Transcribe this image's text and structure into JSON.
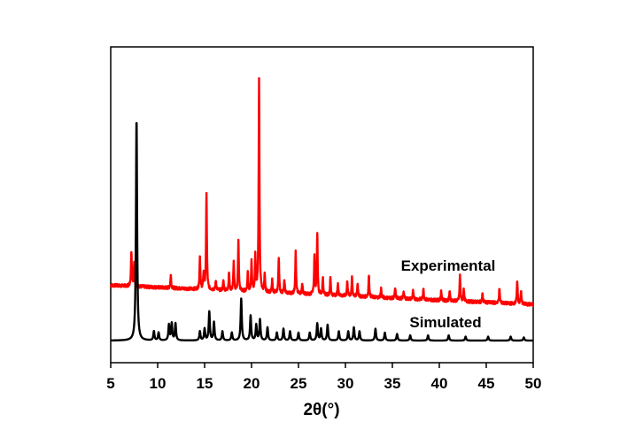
{
  "chart_data": {
    "type": "line",
    "xlabel": "2θ(°)",
    "xlim": [
      5,
      50
    ],
    "xticks": [
      "5",
      "10",
      "15",
      "20",
      "25",
      "30",
      "35",
      "40",
      "45",
      "50"
    ],
    "ylabel": "",
    "yticks_shown": false,
    "legend": "inline labels",
    "series": [
      {
        "name": "Experimental",
        "color": "#ff0000",
        "baseline": {
          "x": [
            5,
            50
          ],
          "y": [
            0.212,
            0.138
          ]
        },
        "peaks": [
          {
            "x": 7.2,
            "y": 0.34
          },
          {
            "x": 7.5,
            "y": 0.3
          },
          {
            "x": 11.4,
            "y": 0.25
          },
          {
            "x": 14.5,
            "y": 0.32
          },
          {
            "x": 14.9,
            "y": 0.26
          },
          {
            "x": 15.2,
            "y": 0.56
          },
          {
            "x": 16.2,
            "y": 0.23
          },
          {
            "x": 17.0,
            "y": 0.23
          },
          {
            "x": 17.6,
            "y": 0.26
          },
          {
            "x": 18.1,
            "y": 0.3
          },
          {
            "x": 18.6,
            "y": 0.38
          },
          {
            "x": 19.6,
            "y": 0.26
          },
          {
            "x": 20.0,
            "y": 0.3
          },
          {
            "x": 20.4,
            "y": 0.32
          },
          {
            "x": 20.8,
            "y": 1.0
          },
          {
            "x": 21.4,
            "y": 0.25
          },
          {
            "x": 22.2,
            "y": 0.23
          },
          {
            "x": 22.9,
            "y": 0.32
          },
          {
            "x": 23.5,
            "y": 0.23
          },
          {
            "x": 24.7,
            "y": 0.34
          },
          {
            "x": 25.4,
            "y": 0.22
          },
          {
            "x": 26.7,
            "y": 0.32
          },
          {
            "x": 27.0,
            "y": 0.41
          },
          {
            "x": 27.6,
            "y": 0.24
          },
          {
            "x": 28.4,
            "y": 0.24
          },
          {
            "x": 29.2,
            "y": 0.22
          },
          {
            "x": 30.2,
            "y": 0.23
          },
          {
            "x": 30.7,
            "y": 0.24
          },
          {
            "x": 31.3,
            "y": 0.22
          },
          {
            "x": 32.5,
            "y": 0.25
          },
          {
            "x": 33.8,
            "y": 0.2
          },
          {
            "x": 35.3,
            "y": 0.2
          },
          {
            "x": 36.2,
            "y": 0.19
          },
          {
            "x": 37.2,
            "y": 0.19
          },
          {
            "x": 38.3,
            "y": 0.2
          },
          {
            "x": 40.2,
            "y": 0.19
          },
          {
            "x": 41.1,
            "y": 0.19
          },
          {
            "x": 42.2,
            "y": 0.25
          },
          {
            "x": 42.6,
            "y": 0.2
          },
          {
            "x": 44.6,
            "y": 0.18
          },
          {
            "x": 46.4,
            "y": 0.2
          },
          {
            "x": 48.3,
            "y": 0.23
          },
          {
            "x": 48.7,
            "y": 0.19
          }
        ]
      },
      {
        "name": "Simulated",
        "color": "#000000",
        "baseline": {
          "x": [
            5,
            50
          ],
          "y": [
            0.0,
            0.0
          ]
        },
        "peaks": [
          {
            "x": 7.75,
            "y": 0.85
          },
          {
            "x": 9.6,
            "y": 0.035
          },
          {
            "x": 10.1,
            "y": 0.03
          },
          {
            "x": 11.2,
            "y": 0.06
          },
          {
            "x": 11.5,
            "y": 0.065
          },
          {
            "x": 11.9,
            "y": 0.065
          },
          {
            "x": 14.5,
            "y": 0.035
          },
          {
            "x": 15.0,
            "y": 0.045
          },
          {
            "x": 15.5,
            "y": 0.11
          },
          {
            "x": 16.0,
            "y": 0.07
          },
          {
            "x": 16.9,
            "y": 0.035
          },
          {
            "x": 17.9,
            "y": 0.03
          },
          {
            "x": 18.9,
            "y": 0.16
          },
          {
            "x": 19.9,
            "y": 0.095
          },
          {
            "x": 20.5,
            "y": 0.06
          },
          {
            "x": 20.9,
            "y": 0.08
          },
          {
            "x": 21.7,
            "y": 0.05
          },
          {
            "x": 22.7,
            "y": 0.03
          },
          {
            "x": 23.4,
            "y": 0.045
          },
          {
            "x": 24.1,
            "y": 0.035
          },
          {
            "x": 25.0,
            "y": 0.03
          },
          {
            "x": 26.2,
            "y": 0.03
          },
          {
            "x": 27.0,
            "y": 0.065
          },
          {
            "x": 27.4,
            "y": 0.045
          },
          {
            "x": 28.1,
            "y": 0.06
          },
          {
            "x": 29.3,
            "y": 0.035
          },
          {
            "x": 30.3,
            "y": 0.035
          },
          {
            "x": 30.9,
            "y": 0.05
          },
          {
            "x": 31.5,
            "y": 0.035
          },
          {
            "x": 33.2,
            "y": 0.045
          },
          {
            "x": 34.2,
            "y": 0.03
          },
          {
            "x": 35.5,
            "y": 0.025
          },
          {
            "x": 36.9,
            "y": 0.02
          },
          {
            "x": 38.8,
            "y": 0.02
          },
          {
            "x": 41.0,
            "y": 0.02
          },
          {
            "x": 42.8,
            "y": 0.015
          },
          {
            "x": 45.2,
            "y": 0.015
          },
          {
            "x": 47.6,
            "y": 0.015
          },
          {
            "x": 49.0,
            "y": 0.012
          }
        ]
      }
    ]
  }
}
